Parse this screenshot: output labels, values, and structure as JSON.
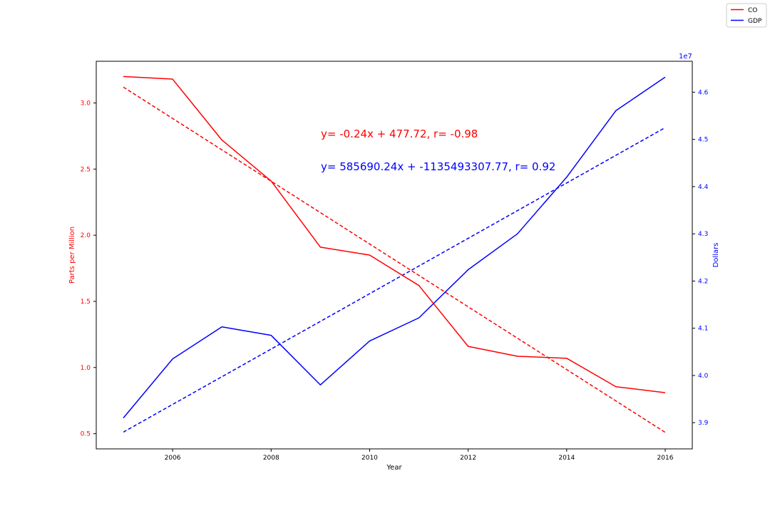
{
  "chart_data": {
    "type": "line",
    "xlabel": "Year",
    "ylabel_left": "Parts per Million",
    "ylabel_right": "Dollars",
    "right_axis_multiplier": "1e7",
    "xlim": [
      2004.45,
      2016.55
    ],
    "ylim_left": [
      0.385,
      3.315
    ],
    "ylim_right": [
      38445000.0,
      46655000.0
    ],
    "x_ticks": [
      2006,
      2008,
      2010,
      2012,
      2014,
      2016
    ],
    "x_tick_labels": [
      "2006",
      "2008",
      "2010",
      "2012",
      "2014",
      "2016"
    ],
    "y_left_ticks": [
      0.5,
      1.0,
      1.5,
      2.0,
      2.5,
      3.0
    ],
    "y_left_tick_labels": [
      "0.5",
      "1.0",
      "1.5",
      "2.0",
      "2.5",
      "3.0"
    ],
    "y_right_ticks": [
      39000000.0,
      40000000.0,
      41000000.0,
      42000000.0,
      43000000.0,
      44000000.0,
      45000000.0,
      46000000.0
    ],
    "y_right_tick_labels": [
      "3.9",
      "4.0",
      "4.1",
      "4.2",
      "4.3",
      "4.4",
      "4.5",
      "4.6"
    ],
    "grid": false,
    "legend_position": "top-right (figure)",
    "x": [
      2005,
      2006,
      2007,
      2008,
      2009,
      2010,
      2011,
      2012,
      2013,
      2014,
      2015,
      2016
    ],
    "series": [
      {
        "name": "CO",
        "axis": "left",
        "color": "#ff0000",
        "values": [
          3.2,
          3.18,
          2.72,
          2.41,
          1.91,
          1.85,
          1.62,
          1.16,
          1.085,
          1.07,
          0.855,
          0.81
        ]
      },
      {
        "name": "GDP",
        "axis": "right",
        "color": "#0000ff",
        "values": [
          39100000,
          40350000,
          41030000,
          40850000,
          39800000,
          40730000,
          41220000,
          42240000,
          43000000,
          44200000,
          45610000,
          46320000
        ]
      }
    ],
    "trendlines": [
      {
        "axis": "left",
        "color": "#ff0000",
        "style": "dashed",
        "equation": "y= -0.24x + 477.72, r= -0.98",
        "start": [
          2005,
          3.12
        ],
        "end": [
          2016,
          0.51
        ]
      },
      {
        "axis": "right",
        "color": "#0000ff",
        "style": "dashed",
        "equation": "y= 585690.24x + -1135493307.77, r= 0.92",
        "start": [
          2005,
          38800000
        ],
        "end": [
          2016,
          45250000
        ]
      }
    ]
  }
}
